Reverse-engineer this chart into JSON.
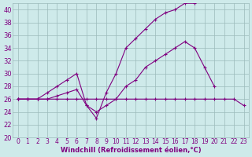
{
  "x": [
    0,
    1,
    2,
    3,
    4,
    5,
    6,
    7,
    8,
    9,
    10,
    11,
    12,
    13,
    14,
    15,
    16,
    17,
    18,
    19,
    20,
    21,
    22,
    23
  ],
  "line1": [
    26,
    26,
    26,
    26,
    26,
    26,
    26,
    26,
    26,
    26,
    26,
    26,
    26,
    26,
    26,
    26,
    26,
    26,
    26,
    26,
    26,
    26,
    26,
    25
  ],
  "line2": [
    26,
    26,
    26,
    26,
    26.5,
    27,
    27.5,
    25,
    24,
    25,
    26,
    28,
    29,
    31,
    32,
    33,
    34,
    35,
    34,
    31,
    28,
    null,
    null,
    null
  ],
  "line3": [
    26,
    26,
    26,
    27,
    28,
    29,
    30,
    25,
    23,
    27,
    30,
    34,
    35.5,
    37,
    38.5,
    39.5,
    40,
    41,
    41,
    null,
    null,
    null,
    null,
    null
  ],
  "ylim": [
    20,
    41
  ],
  "xlim": [
    -0.5,
    23.5
  ],
  "yticks": [
    20,
    22,
    24,
    26,
    28,
    30,
    32,
    34,
    36,
    38,
    40
  ],
  "xticks": [
    0,
    1,
    2,
    3,
    4,
    5,
    6,
    7,
    8,
    9,
    10,
    11,
    12,
    13,
    14,
    15,
    16,
    17,
    18,
    19,
    20,
    21,
    22,
    23
  ],
  "xlabel": "Windchill (Refroidissement éolien,°C)",
  "line_color": "#800080",
  "bg_color": "#ceeaea",
  "grid_color": "#9bbaba",
  "marker": "+",
  "marker_size": 3,
  "linewidth": 0.8,
  "title_fontsize": 7,
  "xlabel_fontsize": 6,
  "tick_fontsize": 5.5
}
